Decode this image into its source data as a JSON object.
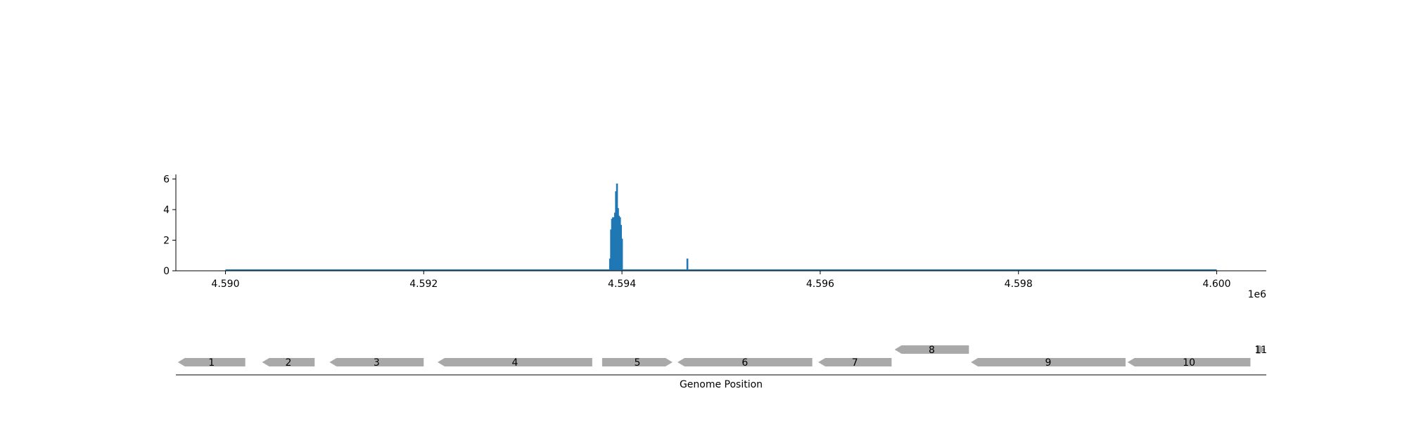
{
  "chart_data": [
    {
      "type": "bar",
      "title": "",
      "xlabel": "",
      "ylabel": "",
      "xlim": [
        4589500,
        4600500
      ],
      "ylim": [
        0,
        6.3
      ],
      "xticks": [
        4590000,
        4592000,
        4594000,
        4596000,
        4598000,
        4600000
      ],
      "xtick_labels": [
        "4.590",
        "4.592",
        "4.594",
        "4.596",
        "4.598",
        "4.600"
      ],
      "x_offset_label": "1e6",
      "yticks": [
        0,
        2,
        4,
        6
      ],
      "ytick_labels": [
        "0",
        "2",
        "4",
        "6"
      ],
      "baseline": {
        "x_start": 4590000,
        "x_end": 4600000,
        "y": 0
      },
      "series": [
        {
          "color": "#1f77b4",
          "points": [
            {
              "x": 4593880,
              "y": 0.8
            },
            {
              "x": 4593890,
              "y": 2.7
            },
            {
              "x": 4593900,
              "y": 3.4
            },
            {
              "x": 4593910,
              "y": 3.5
            },
            {
              "x": 4593920,
              "y": 3.5
            },
            {
              "x": 4593930,
              "y": 3.8
            },
            {
              "x": 4593940,
              "y": 5.2
            },
            {
              "x": 4593950,
              "y": 5.7
            },
            {
              "x": 4593960,
              "y": 4.1
            },
            {
              "x": 4593970,
              "y": 3.6
            },
            {
              "x": 4593980,
              "y": 3.5
            },
            {
              "x": 4593990,
              "y": 3.0
            },
            {
              "x": 4594000,
              "y": 2.1
            },
            {
              "x": 4594660,
              "y": 0.8
            }
          ]
        }
      ]
    },
    {
      "type": "gene-track",
      "xlabel": "Genome Position",
      "xlim": [
        4589500,
        4600500
      ],
      "genes": [
        {
          "label": "1",
          "start": 4589520,
          "end": 4590200,
          "strand": "-",
          "row": 0
        },
        {
          "label": "2",
          "start": 4590370,
          "end": 4590900,
          "strand": "-",
          "row": 0
        },
        {
          "label": "3",
          "start": 4591050,
          "end": 4592000,
          "strand": "-",
          "row": 0
        },
        {
          "label": "4",
          "start": 4592140,
          "end": 4593700,
          "strand": "-",
          "row": 0
        },
        {
          "label": "5",
          "start": 4593800,
          "end": 4594510,
          "strand": "+",
          "row": 0
        },
        {
          "label": "6",
          "start": 4594560,
          "end": 4595920,
          "strand": "-",
          "row": 0
        },
        {
          "label": "7",
          "start": 4595980,
          "end": 4596720,
          "strand": "-",
          "row": 0
        },
        {
          "label": "8",
          "start": 4596750,
          "end": 4597500,
          "strand": "-",
          "row": 1
        },
        {
          "label": "9",
          "start": 4597520,
          "end": 4599080,
          "strand": "-",
          "row": 0
        },
        {
          "label": "10",
          "start": 4599100,
          "end": 4600340,
          "strand": "-",
          "row": 0
        },
        {
          "label": "11",
          "start": 4600400,
          "end": 4600490,
          "strand": "+",
          "row": 1
        }
      ]
    }
  ]
}
